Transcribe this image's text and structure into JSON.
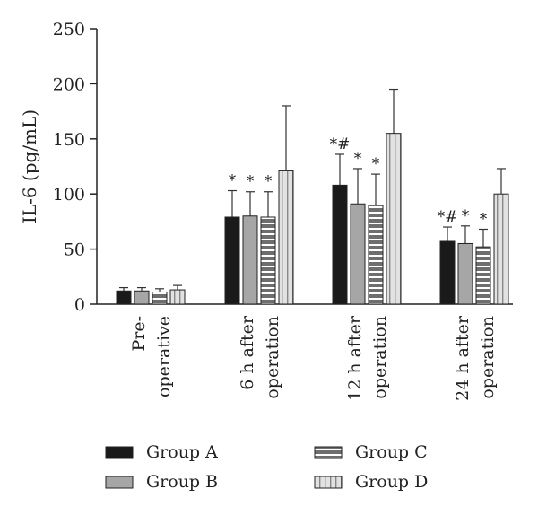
{
  "chart_data": {
    "type": "bar",
    "ylabel": "IL-6 (pg/mL)",
    "ylim": [
      0,
      250
    ],
    "yticks": [
      0,
      50,
      100,
      150,
      200,
      250
    ],
    "categories": [
      [
        "Pre-",
        "operative"
      ],
      [
        "6 h after",
        "operation"
      ],
      [
        "12 h after",
        "operation"
      ],
      [
        "24 h after",
        "operation"
      ]
    ],
    "series": [
      {
        "name": "Group A",
        "values": [
          12,
          79,
          108,
          57
        ],
        "errors": [
          3,
          24,
          28,
          13
        ],
        "marks": [
          "",
          "*",
          "*#",
          "*#"
        ]
      },
      {
        "name": "Group B",
        "values": [
          12,
          80,
          91,
          55
        ],
        "errors": [
          3,
          22,
          32,
          16
        ],
        "marks": [
          "",
          "*",
          "*",
          "*"
        ]
      },
      {
        "name": "Group C",
        "values": [
          11,
          79,
          90,
          52
        ],
        "errors": [
          3,
          23,
          28,
          16
        ],
        "marks": [
          "",
          "*",
          "*",
          "*"
        ]
      },
      {
        "name": "Group D",
        "values": [
          13,
          121,
          155,
          100
        ],
        "errors": [
          4,
          59,
          40,
          23
        ],
        "marks": [
          "",
          "",
          "",
          ""
        ]
      }
    ],
    "colors": {
      "Group A": "#1a1a1a",
      "Group B": "#a6a6a6",
      "Group C": "#6e6e6e",
      "Group D": "#e2e2e2"
    },
    "grid": false,
    "legend": "bottom"
  }
}
